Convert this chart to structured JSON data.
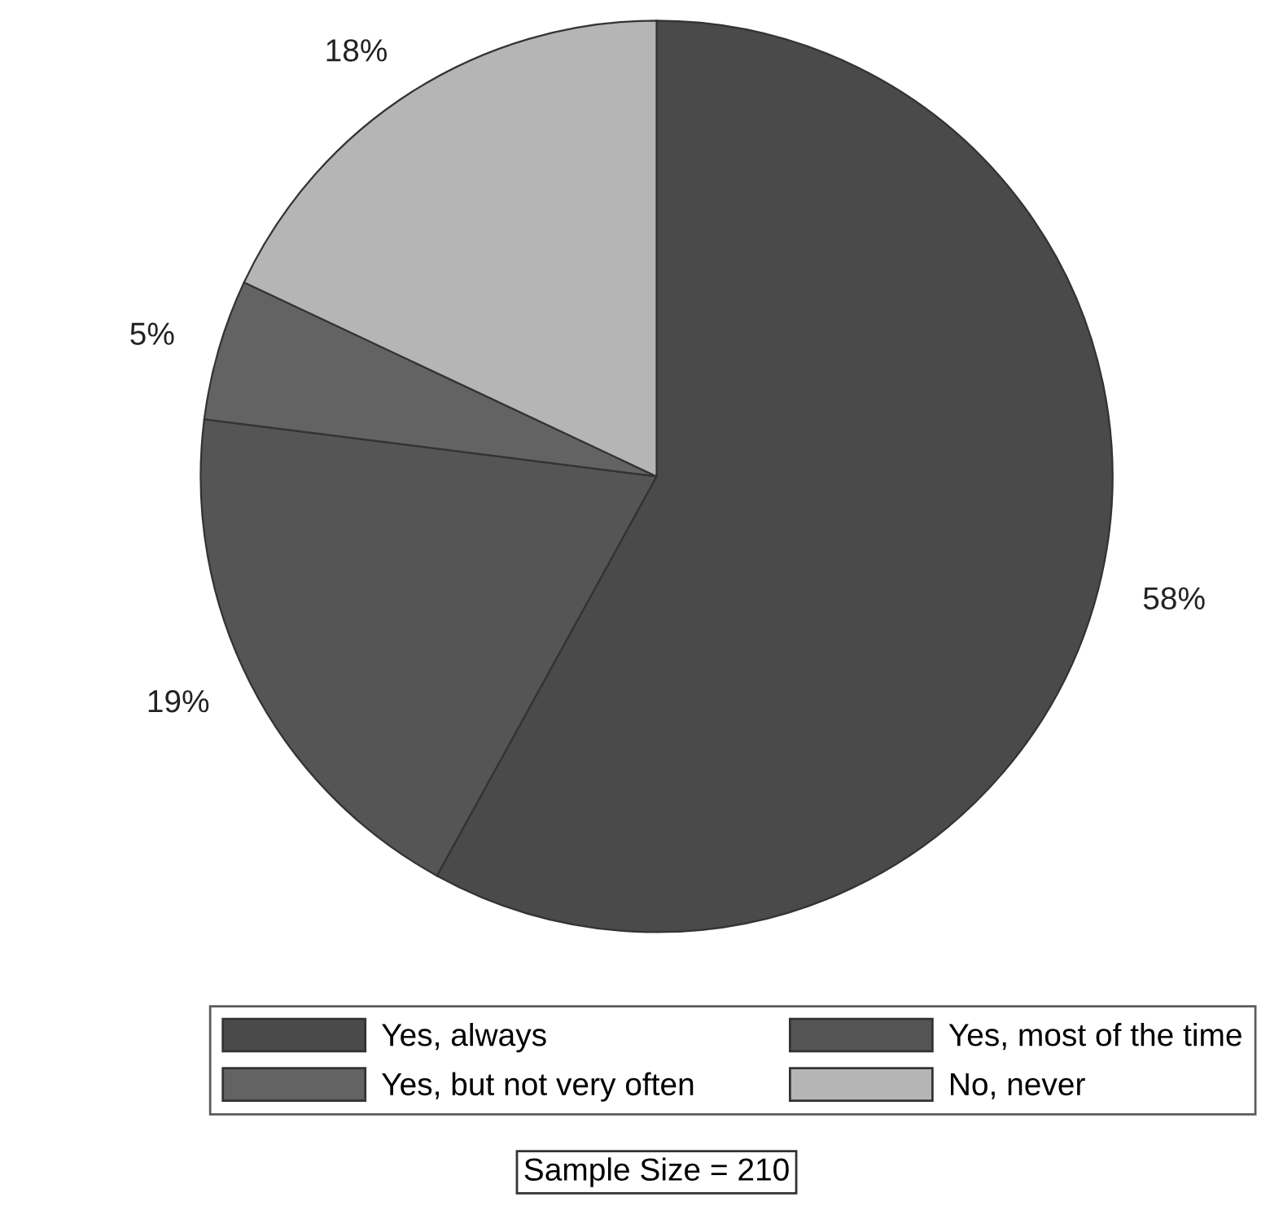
{
  "chart_data": {
    "type": "pie",
    "categories": [
      "Yes, always",
      "Yes, most of the time",
      "Yes, but not very often",
      "No, never"
    ],
    "values": [
      58,
      19,
      5,
      18
    ],
    "colors": [
      "#4a4a4a",
      "#555555",
      "#636363",
      "#b5b5b5"
    ],
    "value_labels": [
      "58%",
      "19%",
      "5%",
      "18%"
    ],
    "legend": "bottom",
    "annotations": [
      "Sample Size = 210"
    ]
  }
}
